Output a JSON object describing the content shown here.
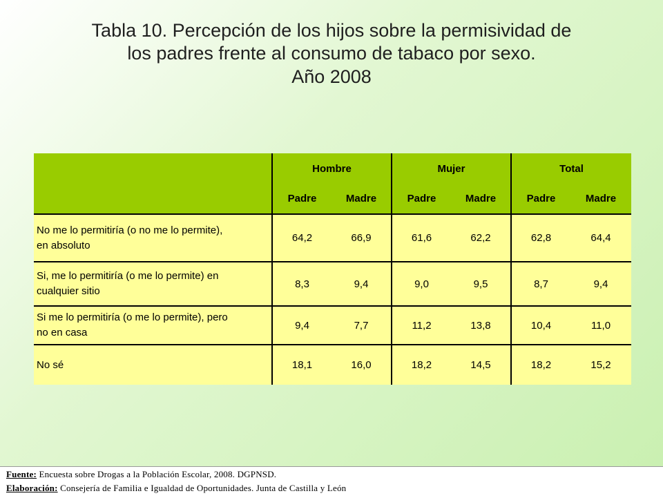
{
  "title": {
    "line1": "Tabla 10. Percepción de los hijos sobre la permisividad de",
    "line2": "los padres frente al consumo de tabaco por sexo.",
    "line3": "Año 2008"
  },
  "table": {
    "groups": [
      "Hombre",
      "Mujer",
      "Total"
    ],
    "subheaders": [
      "Padre",
      "Madre",
      "Padre",
      "Madre",
      "Padre",
      "Madre"
    ],
    "rows": [
      {
        "label_line1": "No me lo permitiría (o no me lo permite),",
        "label_line2": "en absoluto",
        "values": [
          "64,2",
          "66,9",
          "61,6",
          "62,2",
          "62,8",
          "64,4"
        ]
      },
      {
        "label_line1": "Si, me lo permitiría (o me lo permite) en",
        "label_line2": "cualquier sitio",
        "values": [
          "8,3",
          "9,4",
          "9,0",
          "9,5",
          "8,7",
          "9,4"
        ]
      },
      {
        "label_line1": "Si me lo permitiría (o me lo permite), pero",
        "label_line2": "no en casa",
        "values": [
          "9,4",
          "7,7",
          "11,2",
          "13,8",
          "10,4",
          "11,0"
        ]
      },
      {
        "label_line1": "No sé",
        "label_line2": "",
        "values": [
          "18,1",
          "16,0",
          "18,2",
          "14,5",
          "18,2",
          "15,2"
        ]
      }
    ]
  },
  "footer": {
    "source_label": "Fuente:",
    "source_text": "Encuesta sobre Drogas a la Población Escolar, 2008. DGPNSD.",
    "credit_label": "Elaboración:",
    "credit_text": "Consejería de Familia e Igualdad de Oportunidades. Junta de Castilla y León"
  },
  "colors": {
    "header_bg": "#99cc00",
    "row_bg": "#ffff99",
    "footer_bg": "#ffffff"
  }
}
